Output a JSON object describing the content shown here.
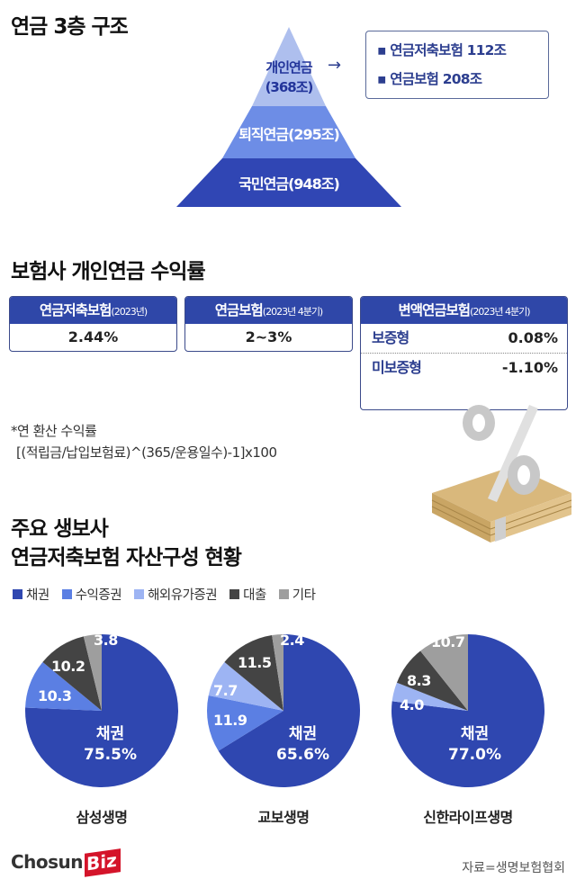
{
  "section1": {
    "title": "연금 3층 구조",
    "pyramid": [
      {
        "name": "개인연금",
        "amount": "(368조)",
        "color": "#aebfee"
      },
      {
        "name": "퇴직연금(295조)",
        "color": "#6d8de6"
      },
      {
        "name": "국민연금(948조)",
        "color": "#3046b4"
      }
    ],
    "arrow": "→",
    "breakdown": [
      "▪ 연금저축보험 112조",
      "▪ 연금보험 208조"
    ]
  },
  "section2": {
    "title": "보험사 개인연금 수익률",
    "cards": [
      {
        "head": "연금저축보험",
        "period": "(2023년)",
        "value": "2.44%"
      },
      {
        "head": "연금보험",
        "period": "(2023년 4분기)",
        "value": "2~3%"
      },
      {
        "head": "변액연금보험",
        "period": "(2023년 4분기)",
        "rows": [
          {
            "label": "보증형",
            "value": "0.08%"
          },
          {
            "label": "미보증형",
            "value": "-1.10%"
          }
        ]
      }
    ],
    "note_title": "*연 환산 수익률",
    "note_formula": "[(적립금/납입보험료)^(365/운용일수)-1]x100"
  },
  "section3": {
    "title_line1": "주요 생보사",
    "title_line2": "연금저축보험 자산구성 현황",
    "legend": [
      {
        "label": "채권",
        "color": "#2f47b0"
      },
      {
        "label": "수익증권",
        "color": "#5b7fe3"
      },
      {
        "label": "해외유가증권",
        "color": "#9db4f3"
      },
      {
        "label": "대출",
        "color": "#444444"
      },
      {
        "label": "기타",
        "color": "#9e9e9e"
      }
    ]
  },
  "chart_data": [
    {
      "type": "pie",
      "title": "삼성생명",
      "categories": [
        "채권",
        "수익증권",
        "해외유가증권",
        "대출",
        "기타"
      ],
      "values": [
        75.5,
        10.3,
        0,
        10.2,
        3.8
      ],
      "labels": {
        "main": "채권",
        "main_value": "75.5%",
        "수익증권": "10.3",
        "대출": "10.2",
        "기타": "3.8"
      }
    },
    {
      "type": "pie",
      "title": "교보생명",
      "categories": [
        "채권",
        "수익증권",
        "해외유가증권",
        "대출",
        "기타"
      ],
      "values": [
        65.6,
        11.9,
        7.7,
        11.5,
        2.4
      ],
      "labels": {
        "main": "채권",
        "main_value": "65.6%",
        "수익증권": "11.9",
        "해외유가증권": "7.7",
        "대출": "11.5",
        "기타": "2.4"
      }
    },
    {
      "type": "pie",
      "title": "신한라이프생명",
      "categories": [
        "채권",
        "수익증권",
        "해외유가증권",
        "대출",
        "기타"
      ],
      "values": [
        77.0,
        0,
        4.0,
        8.3,
        10.7
      ],
      "labels": {
        "main": "채권",
        "main_value": "77.0%",
        "해외유가증권": "4.0",
        "대출": "8.3",
        "기타": "10.7"
      }
    }
  ],
  "footer": {
    "logo_main": "Chosun",
    "logo_accent": "Biz",
    "source": "자료=생명보험협회"
  }
}
